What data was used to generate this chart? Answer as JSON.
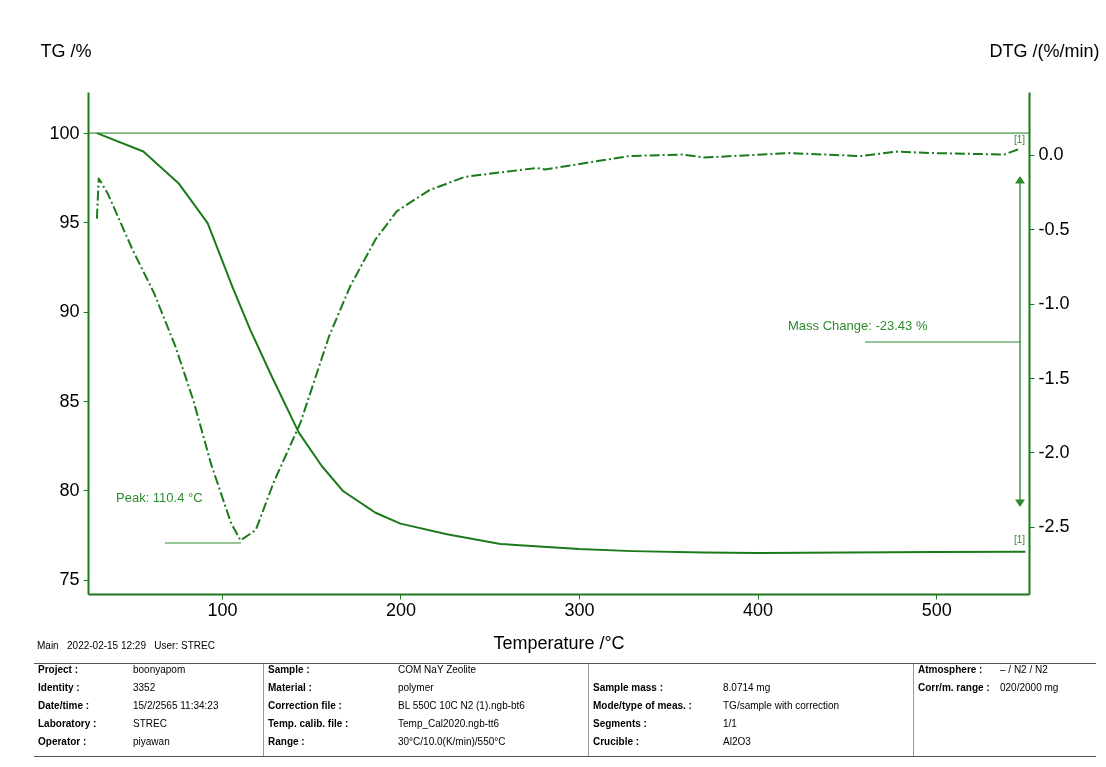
{
  "chart_data": {
    "type": "line",
    "xlabel": "Temperature /°C",
    "ylabel": "TG /%",
    "y2label": "DTG /(%/min)",
    "xlim": [
      25,
      552
    ],
    "xticks": [
      100,
      200,
      300,
      400,
      500
    ],
    "ylim": [
      74.2,
      102.3
    ],
    "yticks": [
      75,
      80,
      85,
      90,
      95,
      100
    ],
    "y2lim": [
      -2.95,
      0.42
    ],
    "y2ticks": [
      {
        "value": 0,
        "label": "0.0"
      },
      {
        "value": -0.5,
        "label": "-0.5"
      },
      {
        "value": -1,
        "label": "-1.0"
      },
      {
        "value": -1.5,
        "label": "-1.5"
      },
      {
        "value": -2,
        "label": "-2.0"
      },
      {
        "value": -2.5,
        "label": "-2.5"
      }
    ],
    "series": [
      {
        "color": "#1b7a1b",
        "line_style": "solid",
        "x": [
          30,
          56,
          76,
          92,
          106,
          116,
          128,
          143,
          156,
          168,
          186,
          200,
          226,
          256,
          280,
          300,
          330,
          370,
          400,
          450,
          500,
          550
        ],
        "values": [
          100,
          98.97,
          97.16,
          94.96,
          91.37,
          88.96,
          86.36,
          83.25,
          81.35,
          79.95,
          78.75,
          78.14,
          77.54,
          77.0,
          76.85,
          76.72,
          76.6,
          76.52,
          76.5,
          76.52,
          76.55,
          76.57
        ]
      },
      {
        "color": "#1b7a1b",
        "line_style": "dashed",
        "axis": "y2",
        "x": [
          30,
          31,
          36,
          50,
          62,
          74,
          84,
          94,
          105,
          110.4,
          119,
          129,
          144,
          160,
          172,
          186,
          198,
          216,
          236,
          256,
          276,
          281,
          302,
          328,
          358,
          370,
          418,
          458,
          478,
          498,
          538,
          547
        ],
        "values": [
          -0.43,
          -0.16,
          -0.26,
          -0.64,
          -0.93,
          -1.29,
          -1.65,
          -2.08,
          -2.47,
          -2.59,
          -2.52,
          -2.2,
          -1.8,
          -1.22,
          -0.88,
          -0.57,
          -0.38,
          -0.24,
          -0.15,
          -0.12,
          -0.09,
          -0.1,
          -0.06,
          -0.01,
          0,
          -0.02,
          0.01,
          -0.01,
          0.02,
          0.01,
          0,
          0.04
        ]
      }
    ],
    "ref_lines": [
      {
        "axis": "y",
        "value": 100
      }
    ],
    "annotations": [
      "Peak: 110.4 °C",
      "Mass Change: -23.43 %",
      "[1]",
      "[1]",
      "Main   2022-02-15 12:29   User: STREC",
      "Project : boonyapom",
      "Identity : 3352",
      "Date/time : 15/2/2565 11:34:23",
      "Laboratory : STREC",
      "Operator : piyawan",
      "Sample : COM NaY Zeolite",
      "Material : polymer",
      "Correction file : BL 550C 10C N2 (1).ngb-bt6",
      "Temp. calib. file : Temp_Cal2020.ngb-tt6",
      "Range : 30°C/10.0(K/min)/550°C",
      "Sample mass : 8.0714 mg",
      "Mode/type of meas. : TG/sample with correction",
      "Segments : 1/1",
      "Crucible : Al2O3",
      "Atmosphere : – / N2 / N2",
      "Corr/m. range : 020/2000 mg"
    ]
  }
}
